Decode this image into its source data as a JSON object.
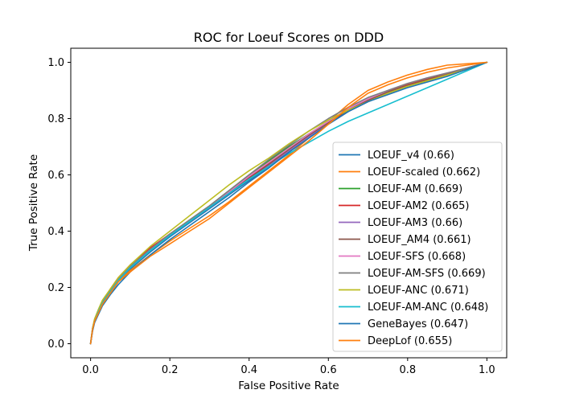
{
  "chart_data": {
    "type": "line",
    "title": "ROC for Loeuf Scores on DDD",
    "xlabel": "False Positive Rate",
    "ylabel": "True Positive Rate",
    "xlim": [
      -0.05,
      1.05
    ],
    "ylim": [
      -0.05,
      1.05
    ],
    "xticks": [
      "0.0",
      "0.2",
      "0.4",
      "0.6",
      "0.8",
      "1.0"
    ],
    "yticks": [
      "0.0",
      "0.2",
      "0.4",
      "0.6",
      "0.8",
      "1.0"
    ],
    "grid": false,
    "legend_position": "lower right",
    "series": [
      {
        "name": "LOEUF_v4 (0.66)",
        "color": "#1f77b4",
        "x": [
          0,
          0.005,
          0.01,
          0.02,
          0.03,
          0.05,
          0.07,
          0.1,
          0.15,
          0.2,
          0.25,
          0.3,
          0.35,
          0.4,
          0.45,
          0.5,
          0.55,
          0.6,
          0.65,
          0.7,
          0.75,
          0.8,
          0.85,
          0.9,
          0.95,
          1.0
        ],
        "y": [
          0,
          0.05,
          0.08,
          0.11,
          0.14,
          0.18,
          0.22,
          0.265,
          0.325,
          0.38,
          0.43,
          0.48,
          0.53,
          0.58,
          0.63,
          0.68,
          0.73,
          0.78,
          0.825,
          0.86,
          0.89,
          0.915,
          0.935,
          0.955,
          0.975,
          1.0
        ]
      },
      {
        "name": "LOEUF-scaled (0.662)",
        "color": "#ff7f0e",
        "x": [
          0,
          0.005,
          0.01,
          0.02,
          0.03,
          0.05,
          0.07,
          0.1,
          0.15,
          0.2,
          0.25,
          0.3,
          0.35,
          0.4,
          0.45,
          0.5,
          0.55,
          0.6,
          0.65,
          0.7,
          0.75,
          0.8,
          0.85,
          0.9,
          0.95,
          1.0
        ],
        "y": [
          0,
          0.05,
          0.08,
          0.11,
          0.14,
          0.18,
          0.22,
          0.26,
          0.315,
          0.365,
          0.41,
          0.455,
          0.505,
          0.56,
          0.615,
          0.67,
          0.73,
          0.79,
          0.85,
          0.9,
          0.93,
          0.955,
          0.975,
          0.99,
          0.995,
          1.0
        ]
      },
      {
        "name": "LOEUF-AM (0.669)",
        "color": "#2ca02c",
        "x": [
          0,
          0.005,
          0.01,
          0.02,
          0.03,
          0.05,
          0.07,
          0.1,
          0.15,
          0.2,
          0.25,
          0.3,
          0.35,
          0.4,
          0.45,
          0.5,
          0.55,
          0.6,
          0.65,
          0.7,
          0.75,
          0.8,
          0.85,
          0.9,
          0.95,
          1.0
        ],
        "y": [
          0,
          0.055,
          0.085,
          0.12,
          0.15,
          0.19,
          0.23,
          0.275,
          0.335,
          0.39,
          0.44,
          0.49,
          0.545,
          0.6,
          0.65,
          0.7,
          0.745,
          0.79,
          0.83,
          0.865,
          0.895,
          0.92,
          0.94,
          0.96,
          0.98,
          1.0
        ]
      },
      {
        "name": "LOEUF-AM2 (0.665)",
        "color": "#d62728",
        "x": [
          0,
          0.005,
          0.01,
          0.02,
          0.03,
          0.05,
          0.07,
          0.1,
          0.15,
          0.2,
          0.25,
          0.3,
          0.35,
          0.4,
          0.45,
          0.5,
          0.55,
          0.6,
          0.65,
          0.7,
          0.75,
          0.8,
          0.85,
          0.9,
          0.95,
          1.0
        ],
        "y": [
          0,
          0.055,
          0.085,
          0.12,
          0.15,
          0.195,
          0.235,
          0.28,
          0.34,
          0.39,
          0.435,
          0.485,
          0.535,
          0.59,
          0.64,
          0.69,
          0.74,
          0.785,
          0.83,
          0.865,
          0.895,
          0.92,
          0.94,
          0.96,
          0.98,
          1.0
        ]
      },
      {
        "name": "LOEUF-AM3 (0.66)",
        "color": "#9467bd",
        "x": [
          0,
          0.005,
          0.01,
          0.02,
          0.03,
          0.05,
          0.07,
          0.1,
          0.15,
          0.2,
          0.25,
          0.3,
          0.35,
          0.4,
          0.45,
          0.5,
          0.55,
          0.6,
          0.65,
          0.7,
          0.75,
          0.8,
          0.85,
          0.9,
          0.95,
          1.0
        ],
        "y": [
          0,
          0.05,
          0.08,
          0.115,
          0.145,
          0.185,
          0.225,
          0.27,
          0.33,
          0.385,
          0.435,
          0.485,
          0.535,
          0.585,
          0.635,
          0.685,
          0.735,
          0.78,
          0.825,
          0.86,
          0.89,
          0.915,
          0.935,
          0.955,
          0.975,
          1.0
        ]
      },
      {
        "name": "LOEUF_AM4 (0.661)",
        "color": "#8c564b",
        "x": [
          0,
          0.005,
          0.01,
          0.02,
          0.03,
          0.05,
          0.07,
          0.1,
          0.15,
          0.2,
          0.25,
          0.3,
          0.35,
          0.4,
          0.45,
          0.5,
          0.55,
          0.6,
          0.65,
          0.7,
          0.75,
          0.8,
          0.85,
          0.9,
          0.95,
          1.0
        ],
        "y": [
          0,
          0.05,
          0.082,
          0.118,
          0.148,
          0.19,
          0.23,
          0.272,
          0.332,
          0.387,
          0.437,
          0.487,
          0.537,
          0.588,
          0.638,
          0.69,
          0.74,
          0.786,
          0.83,
          0.865,
          0.895,
          0.918,
          0.938,
          0.957,
          0.977,
          1.0
        ]
      },
      {
        "name": "LOEUF-SFS (0.668)",
        "color": "#e377c2",
        "x": [
          0,
          0.005,
          0.01,
          0.02,
          0.03,
          0.05,
          0.07,
          0.1,
          0.15,
          0.2,
          0.25,
          0.3,
          0.35,
          0.4,
          0.45,
          0.5,
          0.55,
          0.6,
          0.65,
          0.7,
          0.75,
          0.8,
          0.85,
          0.9,
          0.95,
          1.0
        ],
        "y": [
          0,
          0.055,
          0.085,
          0.12,
          0.15,
          0.19,
          0.23,
          0.275,
          0.335,
          0.39,
          0.44,
          0.49,
          0.54,
          0.595,
          0.645,
          0.695,
          0.745,
          0.79,
          0.835,
          0.87,
          0.9,
          0.925,
          0.945,
          0.962,
          0.98,
          1.0
        ]
      },
      {
        "name": "LOEUF-AM-SFS (0.669)",
        "color": "#7f7f7f",
        "x": [
          0,
          0.005,
          0.01,
          0.02,
          0.03,
          0.05,
          0.07,
          0.1,
          0.15,
          0.2,
          0.25,
          0.3,
          0.35,
          0.4,
          0.45,
          0.5,
          0.55,
          0.6,
          0.65,
          0.7,
          0.75,
          0.8,
          0.85,
          0.9,
          0.95,
          1.0
        ],
        "y": [
          0,
          0.055,
          0.085,
          0.12,
          0.15,
          0.19,
          0.23,
          0.275,
          0.335,
          0.39,
          0.44,
          0.49,
          0.545,
          0.6,
          0.655,
          0.705,
          0.755,
          0.8,
          0.84,
          0.875,
          0.9,
          0.925,
          0.945,
          0.962,
          0.98,
          1.0
        ]
      },
      {
        "name": "LOEUF-ANC (0.671)",
        "color": "#bcbd22",
        "x": [
          0,
          0.005,
          0.01,
          0.02,
          0.03,
          0.05,
          0.07,
          0.1,
          0.15,
          0.2,
          0.25,
          0.3,
          0.35,
          0.4,
          0.45,
          0.5,
          0.55,
          0.6,
          0.65,
          0.7,
          0.75,
          0.8,
          0.85,
          0.9,
          0.95,
          1.0
        ],
        "y": [
          0,
          0.055,
          0.088,
          0.123,
          0.155,
          0.195,
          0.235,
          0.28,
          0.345,
          0.4,
          0.455,
          0.51,
          0.565,
          0.615,
          0.66,
          0.71,
          0.755,
          0.795,
          0.83,
          0.86,
          0.89,
          0.915,
          0.935,
          0.955,
          0.975,
          1.0
        ]
      },
      {
        "name": "LOEUF-AM-ANC (0.648)",
        "color": "#17becf",
        "x": [
          0,
          0.005,
          0.01,
          0.02,
          0.03,
          0.05,
          0.07,
          0.1,
          0.15,
          0.2,
          0.25,
          0.3,
          0.35,
          0.4,
          0.45,
          0.5,
          0.55,
          0.6,
          0.65,
          0.7,
          0.75,
          0.8,
          0.85,
          0.9,
          0.95,
          1.0
        ],
        "y": [
          0,
          0.05,
          0.08,
          0.115,
          0.145,
          0.185,
          0.225,
          0.27,
          0.33,
          0.385,
          0.435,
          0.485,
          0.535,
          0.585,
          0.63,
          0.675,
          0.715,
          0.755,
          0.79,
          0.82,
          0.85,
          0.88,
          0.91,
          0.94,
          0.97,
          1.0
        ]
      },
      {
        "name": "GeneBayes (0.647)",
        "color": "#1f77b4",
        "x": [
          0,
          0.005,
          0.01,
          0.02,
          0.03,
          0.05,
          0.07,
          0.1,
          0.15,
          0.2,
          0.25,
          0.3,
          0.35,
          0.4,
          0.45,
          0.5,
          0.55,
          0.6,
          0.65,
          0.7,
          0.75,
          0.8,
          0.85,
          0.9,
          0.95,
          1.0
        ],
        "y": [
          0,
          0.045,
          0.075,
          0.105,
          0.135,
          0.175,
          0.21,
          0.255,
          0.315,
          0.37,
          0.42,
          0.47,
          0.52,
          0.575,
          0.625,
          0.68,
          0.73,
          0.78,
          0.825,
          0.86,
          0.885,
          0.91,
          0.93,
          0.95,
          0.975,
          1.0
        ]
      },
      {
        "name": "DeepLof (0.655)",
        "color": "#ff7f0e",
        "x": [
          0,
          0.005,
          0.01,
          0.02,
          0.03,
          0.05,
          0.07,
          0.1,
          0.15,
          0.2,
          0.25,
          0.3,
          0.35,
          0.4,
          0.45,
          0.5,
          0.55,
          0.6,
          0.65,
          0.7,
          0.75,
          0.8,
          0.85,
          0.9,
          0.95,
          1.0
        ],
        "y": [
          0,
          0.05,
          0.08,
          0.11,
          0.14,
          0.18,
          0.22,
          0.255,
          0.31,
          0.355,
          0.4,
          0.445,
          0.5,
          0.555,
          0.61,
          0.665,
          0.72,
          0.78,
          0.84,
          0.89,
          0.92,
          0.945,
          0.965,
          0.98,
          0.99,
          1.0
        ]
      }
    ]
  }
}
